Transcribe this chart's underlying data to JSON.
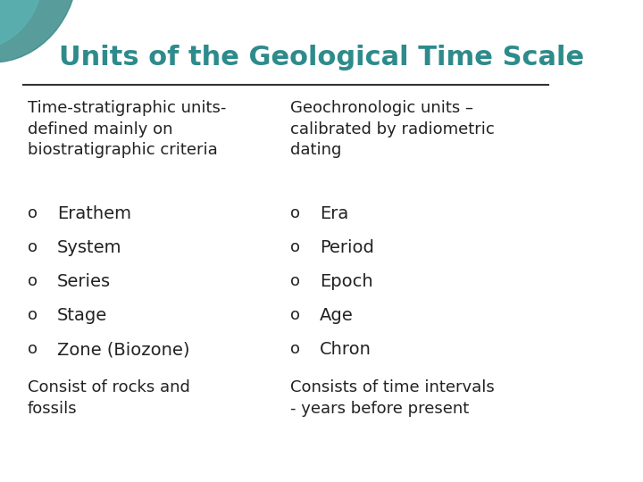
{
  "title": "Units of the Geological Time Scale",
  "title_color": "#2E8B8B",
  "bg_color": "#FFFFFF",
  "line_color": "#333333",
  "text_color": "#222222",
  "left_header": "Time-stratigraphic units-\ndefined mainly on\nbiostratigraphic criteria",
  "right_header": "Geochronologic units –\ncalibrated by radiometric\ndating",
  "left_bullets": [
    "Erathem",
    "System",
    "Series",
    "Stage",
    "Zone (Biozone)"
  ],
  "right_bullets": [
    "Era",
    "Period",
    "Epoch",
    "Age",
    "Chron"
  ],
  "left_footer": "Consist of rocks and\nfossils",
  "right_footer": "Consists of time intervals\n- years before present",
  "bullet_char": "o",
  "decor_color1": "#3B8B8B",
  "decor_color2": "#5BB5B5"
}
